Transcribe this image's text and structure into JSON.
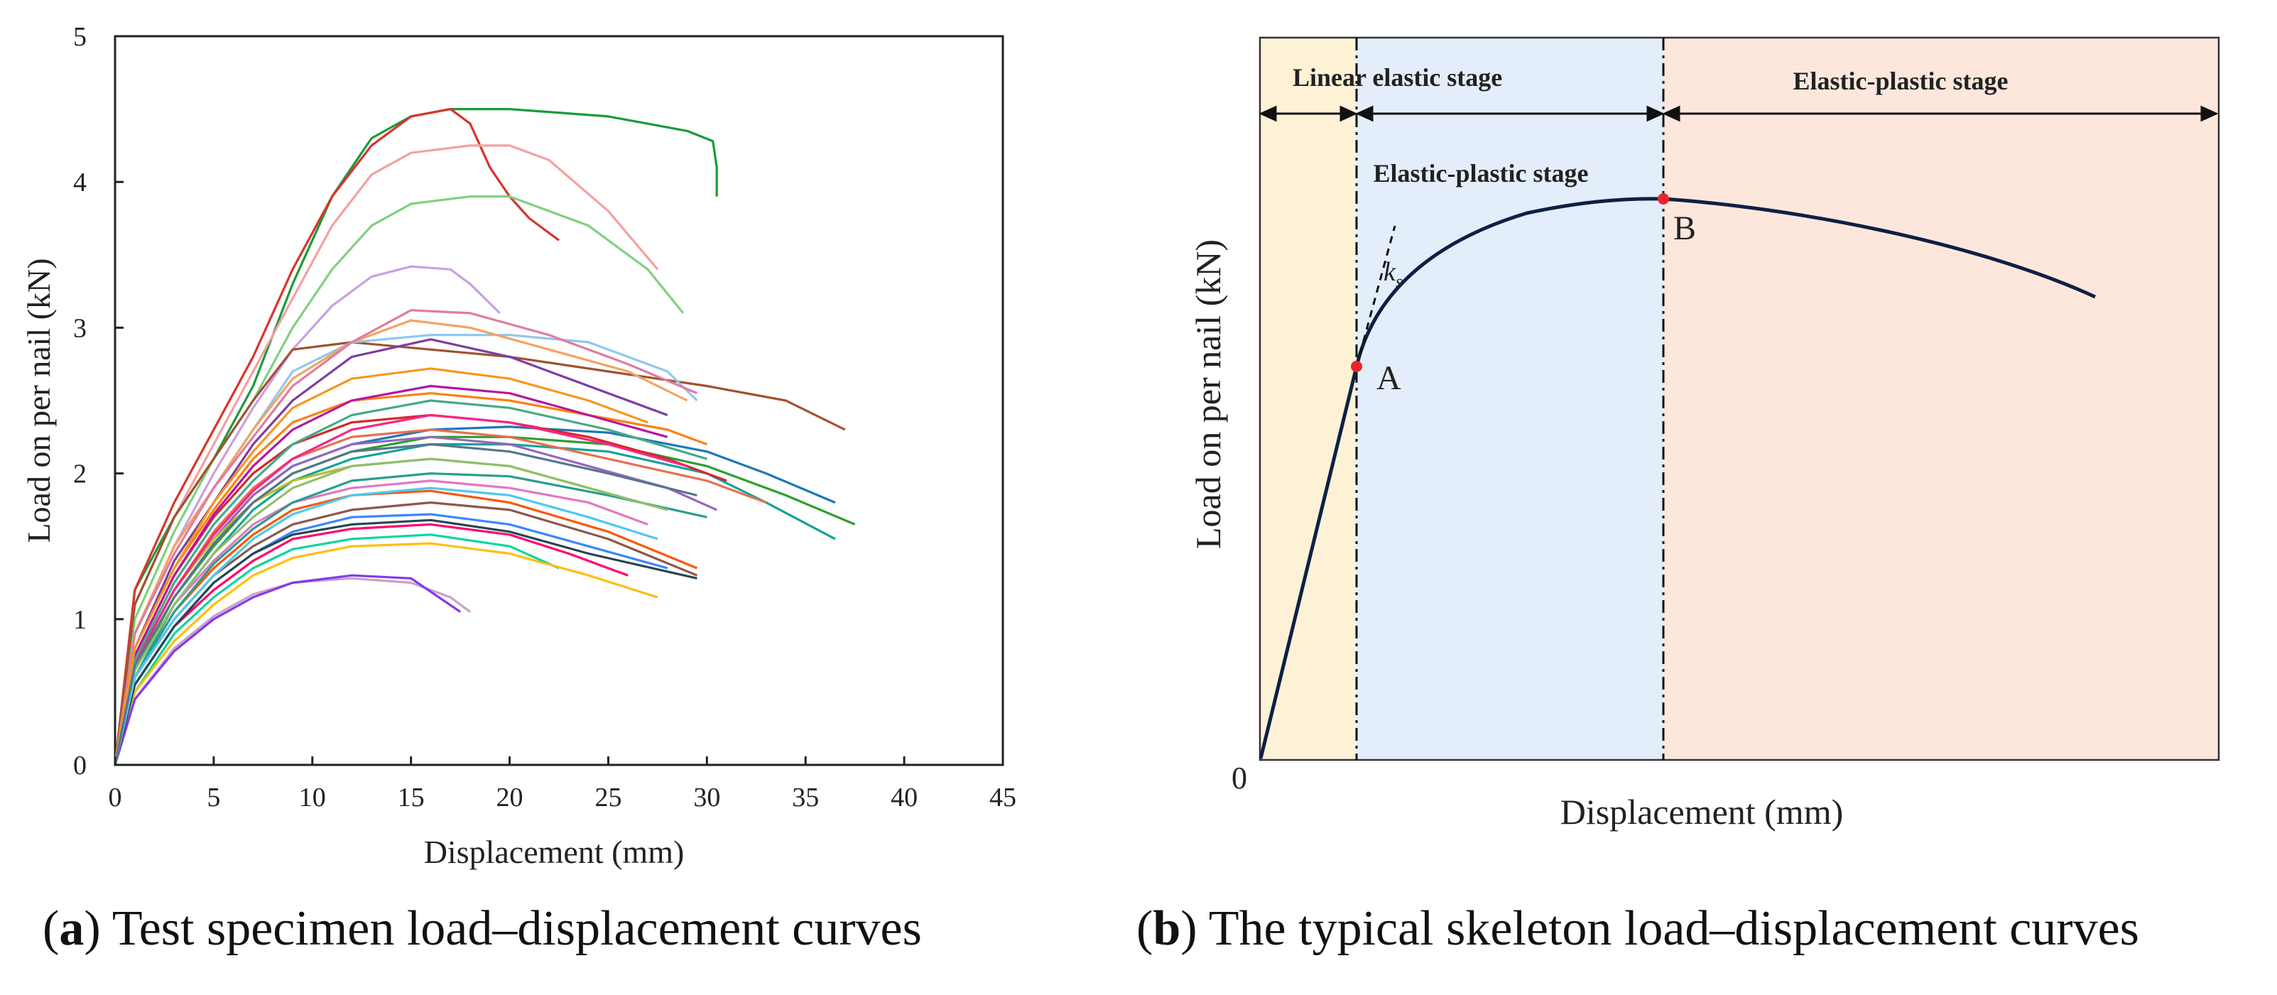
{
  "captions": {
    "a_letter": "a",
    "a_text": " Test specimen load–displacement curves",
    "b_letter": "b",
    "b_text": " The typical skeleton load–displacement curves"
  },
  "chart_data": [
    {
      "type": "line",
      "panel": "a",
      "xlabel": "Displacement (mm)",
      "ylabel": "Load on per nail (kN)",
      "xlim": [
        0,
        45
      ],
      "ylim": [
        0,
        5
      ],
      "xticks": [
        0,
        5,
        10,
        15,
        20,
        25,
        30,
        35,
        40,
        45
      ],
      "yticks": [
        0,
        1,
        2,
        3,
        4,
        5
      ],
      "grid": false,
      "series": [
        {
          "color": "#1a9a3a",
          "x": [
            0,
            1,
            3,
            5,
            7,
            9,
            11,
            13,
            15,
            17,
            20,
            25,
            29,
            30.3,
            30.5,
            30.5
          ],
          "y": [
            0,
            1.2,
            1.7,
            2.1,
            2.6,
            3.3,
            3.9,
            4.3,
            4.45,
            4.5,
            4.5,
            4.45,
            4.35,
            4.28,
            4.1,
            3.9
          ]
        },
        {
          "color": "#d9342b",
          "x": [
            0,
            1,
            3,
            5,
            7,
            9,
            11,
            13,
            15,
            17,
            18,
            19,
            20,
            21,
            22.5
          ],
          "y": [
            0,
            1.2,
            1.8,
            2.3,
            2.8,
            3.4,
            3.9,
            4.25,
            4.45,
            4.5,
            4.4,
            4.1,
            3.9,
            3.75,
            3.6
          ]
        },
        {
          "color": "#f4a0a0",
          "x": [
            0,
            1,
            3,
            5,
            7,
            9,
            11,
            13,
            15,
            18,
            20,
            22,
            25,
            27.5
          ],
          "y": [
            0,
            1.1,
            1.7,
            2.2,
            2.7,
            3.2,
            3.7,
            4.05,
            4.2,
            4.25,
            4.25,
            4.15,
            3.8,
            3.4
          ]
        },
        {
          "color": "#7fd17f",
          "x": [
            0,
            1,
            3,
            5,
            7,
            9,
            11,
            13,
            15,
            18,
            20,
            24,
            27,
            28.8
          ],
          "y": [
            0,
            1.0,
            1.6,
            2.1,
            2.5,
            3.0,
            3.4,
            3.7,
            3.85,
            3.9,
            3.9,
            3.7,
            3.4,
            3.1
          ]
        },
        {
          "color": "#c9a0e0",
          "x": [
            0,
            1,
            3,
            5,
            7,
            9,
            11,
            13,
            15,
            17,
            18,
            19.5
          ],
          "y": [
            0,
            0.9,
            1.5,
            2.0,
            2.45,
            2.85,
            3.15,
            3.35,
            3.42,
            3.4,
            3.3,
            3.1
          ]
        },
        {
          "color": "#a0522d",
          "x": [
            0,
            1,
            3,
            5,
            7,
            9,
            12,
            16,
            20,
            25,
            30,
            34,
            37
          ],
          "y": [
            0,
            1.1,
            1.7,
            2.1,
            2.5,
            2.85,
            2.9,
            2.85,
            2.8,
            2.7,
            2.6,
            2.5,
            2.3
          ]
        },
        {
          "color": "#8fc7ee",
          "x": [
            0,
            1,
            3,
            5,
            7,
            9,
            12,
            16,
            20,
            24,
            28,
            29.5
          ],
          "y": [
            0,
            0.9,
            1.5,
            1.9,
            2.3,
            2.7,
            2.9,
            2.95,
            2.95,
            2.9,
            2.7,
            2.5
          ]
        },
        {
          "color": "#f4a261",
          "x": [
            0,
            1,
            3,
            5,
            7,
            9,
            12,
            15,
            18,
            22,
            26,
            29
          ],
          "y": [
            0,
            0.9,
            1.5,
            1.9,
            2.3,
            2.65,
            2.9,
            3.05,
            3.0,
            2.85,
            2.7,
            2.5
          ]
        },
        {
          "color": "#e07ba0",
          "x": [
            0,
            1,
            3,
            5,
            7,
            9,
            12,
            15,
            18,
            22,
            26,
            29.5
          ],
          "y": [
            0,
            0.9,
            1.45,
            1.9,
            2.25,
            2.6,
            2.9,
            3.12,
            3.1,
            2.95,
            2.75,
            2.55
          ]
        },
        {
          "color": "#7b3fa0",
          "x": [
            0,
            1,
            3,
            5,
            7,
            9,
            12,
            16,
            20,
            24,
            28
          ],
          "y": [
            0,
            0.8,
            1.4,
            1.8,
            2.2,
            2.5,
            2.8,
            2.92,
            2.8,
            2.6,
            2.4
          ]
        },
        {
          "color": "#1f77b4",
          "x": [
            0,
            1,
            3,
            5,
            7,
            9,
            12,
            16,
            20,
            25,
            30,
            33,
            36.5
          ],
          "y": [
            0,
            0.7,
            1.2,
            1.55,
            1.85,
            2.05,
            2.2,
            2.3,
            2.32,
            2.28,
            2.15,
            2.0,
            1.8
          ]
        },
        {
          "color": "#17a398",
          "x": [
            0,
            1,
            3,
            5,
            7,
            9,
            12,
            16,
            20,
            25,
            30,
            33,
            36.5
          ],
          "y": [
            0,
            0.6,
            1.1,
            1.45,
            1.75,
            1.95,
            2.1,
            2.2,
            2.2,
            2.15,
            2.0,
            1.8,
            1.55
          ]
        },
        {
          "color": "#2ca02c",
          "x": [
            0,
            1,
            3,
            5,
            7,
            9,
            12,
            16,
            20,
            25,
            30,
            34,
            37.5
          ],
          "y": [
            0,
            0.65,
            1.15,
            1.5,
            1.8,
            2.0,
            2.15,
            2.25,
            2.25,
            2.2,
            2.05,
            1.85,
            1.65
          ]
        },
        {
          "color": "#ff7f0e",
          "x": [
            0,
            1,
            3,
            5,
            7,
            9,
            12,
            16,
            20,
            24,
            28,
            30
          ],
          "y": [
            0,
            0.8,
            1.35,
            1.75,
            2.1,
            2.35,
            2.5,
            2.55,
            2.5,
            2.4,
            2.3,
            2.2
          ]
        },
        {
          "color": "#d62728",
          "x": [
            0,
            1,
            3,
            5,
            7,
            9,
            12,
            16,
            20,
            24,
            28,
            31
          ],
          "y": [
            0,
            0.75,
            1.3,
            1.7,
            2.0,
            2.2,
            2.35,
            2.4,
            2.35,
            2.25,
            2.1,
            1.95
          ]
        },
        {
          "color": "#9467bd",
          "x": [
            0,
            1,
            3,
            5,
            7,
            9,
            12,
            16,
            20,
            24,
            28,
            30.5
          ],
          "y": [
            0,
            0.7,
            1.2,
            1.55,
            1.85,
            2.05,
            2.2,
            2.25,
            2.2,
            2.05,
            1.9,
            1.75
          ]
        },
        {
          "color": "#bcbd22",
          "x": [
            0,
            1,
            3,
            5,
            7,
            9,
            12,
            16,
            20,
            24,
            28
          ],
          "y": [
            0,
            0.7,
            1.2,
            1.55,
            1.8,
            1.95,
            2.05,
            2.1,
            2.05,
            1.9,
            1.75
          ]
        },
        {
          "color": "#e377c2",
          "x": [
            0,
            1,
            3,
            5,
            7,
            9,
            12,
            16,
            20,
            24,
            27
          ],
          "y": [
            0,
            0.65,
            1.1,
            1.4,
            1.65,
            1.8,
            1.9,
            1.95,
            1.9,
            1.8,
            1.65
          ]
        },
        {
          "color": "#8c564b",
          "x": [
            0,
            1,
            3,
            5,
            7,
            9,
            12,
            16,
            20,
            25,
            29.5
          ],
          "y": [
            0,
            0.6,
            1.0,
            1.3,
            1.5,
            1.65,
            1.75,
            1.8,
            1.75,
            1.55,
            1.3
          ]
        },
        {
          "color": "#3a86ff",
          "x": [
            0,
            1,
            3,
            5,
            7,
            9,
            12,
            16,
            20,
            24,
            28
          ],
          "y": [
            0,
            0.55,
            0.95,
            1.25,
            1.45,
            1.6,
            1.7,
            1.72,
            1.65,
            1.5,
            1.35
          ]
        },
        {
          "color": "#ff006e",
          "x": [
            0,
            1,
            3,
            5,
            7,
            9,
            12,
            16,
            20,
            23,
            26
          ],
          "y": [
            0,
            0.55,
            0.95,
            1.2,
            1.4,
            1.55,
            1.62,
            1.65,
            1.58,
            1.45,
            1.3
          ]
        },
        {
          "color": "#06d6a0",
          "x": [
            0,
            1,
            3,
            5,
            7,
            9,
            12,
            16,
            20,
            22.5
          ],
          "y": [
            0,
            0.5,
            0.9,
            1.15,
            1.35,
            1.48,
            1.55,
            1.58,
            1.5,
            1.35
          ]
        },
        {
          "color": "#ffbe0b",
          "x": [
            0,
            1,
            3,
            5,
            7,
            9,
            12,
            16,
            20,
            24,
            27.5
          ],
          "y": [
            0,
            0.5,
            0.85,
            1.1,
            1.3,
            1.42,
            1.5,
            1.52,
            1.45,
            1.3,
            1.15
          ]
        },
        {
          "color": "#c8a2c8",
          "x": [
            0,
            1,
            3,
            5,
            7,
            9,
            12,
            15,
            17,
            18
          ],
          "y": [
            0,
            0.45,
            0.8,
            1.02,
            1.17,
            1.25,
            1.28,
            1.25,
            1.15,
            1.05
          ]
        },
        {
          "color": "#8338ec",
          "x": [
            0,
            1,
            3,
            5,
            7,
            9,
            12,
            15,
            17.5
          ],
          "y": [
            0,
            0.45,
            0.78,
            1.0,
            1.15,
            1.25,
            1.3,
            1.28,
            1.05
          ]
        },
        {
          "color": "#fb5607",
          "x": [
            0,
            1,
            3,
            5,
            7,
            9,
            12,
            16,
            20,
            25,
            29.5
          ],
          "y": [
            0,
            0.6,
            1.05,
            1.35,
            1.58,
            1.75,
            1.85,
            1.88,
            1.8,
            1.6,
            1.35
          ]
        },
        {
          "color": "#2a9d8f",
          "x": [
            0,
            1,
            3,
            5,
            7,
            9,
            12,
            16,
            20,
            25,
            30
          ],
          "y": [
            0,
            0.6,
            1.05,
            1.38,
            1.62,
            1.8,
            1.95,
            2.0,
            1.98,
            1.85,
            1.7
          ]
        },
        {
          "color": "#e76f51",
          "x": [
            0,
            1,
            3,
            5,
            7,
            9,
            12,
            16,
            20,
            25,
            30,
            33
          ],
          "y": [
            0,
            0.7,
            1.2,
            1.6,
            1.9,
            2.1,
            2.25,
            2.3,
            2.25,
            2.1,
            1.95,
            1.8
          ]
        },
        {
          "color": "#264653",
          "x": [
            0,
            1,
            3,
            5,
            7,
            9,
            12,
            16,
            20,
            24,
            29.5
          ],
          "y": [
            0,
            0.55,
            0.95,
            1.25,
            1.45,
            1.58,
            1.65,
            1.68,
            1.6,
            1.45,
            1.28
          ]
        },
        {
          "color": "#90be6d",
          "x": [
            0,
            1,
            3,
            5,
            7,
            9,
            12,
            16,
            20,
            24,
            28
          ],
          "y": [
            0,
            0.65,
            1.1,
            1.45,
            1.7,
            1.9,
            2.05,
            2.1,
            2.05,
            1.9,
            1.75
          ]
        },
        {
          "color": "#f72585",
          "x": [
            0,
            1,
            3,
            5,
            7,
            9,
            12,
            16,
            20,
            25,
            29
          ],
          "y": [
            0,
            0.7,
            1.2,
            1.58,
            1.88,
            2.1,
            2.3,
            2.4,
            2.35,
            2.2,
            2.05
          ]
        },
        {
          "color": "#4cc9f0",
          "x": [
            0,
            1,
            3,
            5,
            7,
            9,
            12,
            16,
            20,
            24,
            27.5
          ],
          "y": [
            0,
            0.6,
            1.0,
            1.3,
            1.55,
            1.72,
            1.85,
            1.9,
            1.85,
            1.7,
            1.55
          ]
        },
        {
          "color": "#b5179e",
          "x": [
            0,
            1,
            3,
            5,
            7,
            9,
            12,
            16,
            20,
            24,
            28
          ],
          "y": [
            0,
            0.75,
            1.3,
            1.72,
            2.05,
            2.3,
            2.5,
            2.6,
            2.55,
            2.4,
            2.25
          ]
        },
        {
          "color": "#43aa8b",
          "x": [
            0,
            1,
            3,
            5,
            7,
            9,
            12,
            16,
            20,
            25,
            30
          ],
          "y": [
            0,
            0.72,
            1.25,
            1.65,
            1.95,
            2.2,
            2.4,
            2.5,
            2.45,
            2.3,
            2.1
          ]
        },
        {
          "color": "#f8961e",
          "x": [
            0,
            1,
            3,
            5,
            7,
            9,
            12,
            16,
            20,
            24,
            27
          ],
          "y": [
            0,
            0.8,
            1.35,
            1.8,
            2.15,
            2.45,
            2.65,
            2.72,
            2.65,
            2.5,
            2.35
          ]
        },
        {
          "color": "#577590",
          "x": [
            0,
            1,
            3,
            5,
            7,
            9,
            12,
            16,
            20,
            25,
            29.5
          ],
          "y": [
            0,
            0.68,
            1.15,
            1.52,
            1.8,
            2.0,
            2.15,
            2.2,
            2.15,
            2.0,
            1.85
          ]
        }
      ]
    },
    {
      "type": "line",
      "panel": "b",
      "xlabel": "Displacement (mm)",
      "ylabel": "Load on per nail (kN)",
      "origin_label": "0",
      "grid": false,
      "regions": [
        {
          "label": "Linear elastic stage",
          "color": "#fdf1d6"
        },
        {
          "label": "Elastic-plastic stage",
          "color": "#e3eefa"
        },
        {
          "label": "Elastic-plastic stage",
          "color": "#fde7dc"
        }
      ],
      "mid_region_label": "Elastic-plastic stage",
      "points": [
        {
          "label": "A",
          "color": "#e8262b"
        },
        {
          "label": "B",
          "color": "#e8262b"
        }
      ],
      "tangent_label_k": "k",
      "tangent_label_sub": "s"
    }
  ]
}
